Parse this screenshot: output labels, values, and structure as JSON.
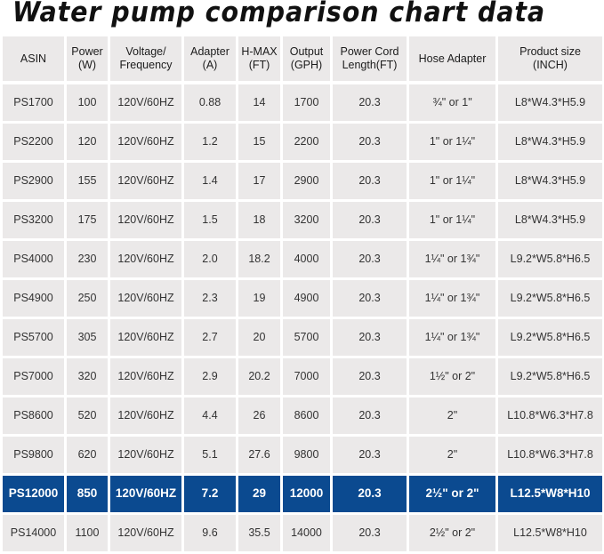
{
  "title": "Water pump comparison chart data",
  "highlight_color": "#0b4a90",
  "columns": [
    {
      "line1": "ASIN",
      "line2": ""
    },
    {
      "line1": "Power",
      "line2": "(W)"
    },
    {
      "line1": "Voltage/",
      "line2": "Frequency"
    },
    {
      "line1": "Adapter",
      "line2": "(A)"
    },
    {
      "line1": "H-MAX",
      "line2": "(FT)"
    },
    {
      "line1": "Output",
      "line2": "(GPH)"
    },
    {
      "line1": "Power Cord",
      "line2": "Length(FT)"
    },
    {
      "line1": "Hose Adapter",
      "line2": ""
    },
    {
      "line1": "Product size",
      "line2": "(INCH)"
    }
  ],
  "rows": [
    [
      "PS1700",
      "100",
      "120V/60HZ",
      "0.88",
      "14",
      "1700",
      "20.3",
      "¾\" or 1\"",
      "L8*W4.3*H5.9"
    ],
    [
      "PS2200",
      "120",
      "120V/60HZ",
      "1.2",
      "15",
      "2200",
      "20.3",
      "1\" or 1¼\"",
      "L8*W4.3*H5.9"
    ],
    [
      "PS2900",
      "155",
      "120V/60HZ",
      "1.4",
      "17",
      "2900",
      "20.3",
      "1\" or 1¼\"",
      "L8*W4.3*H5.9"
    ],
    [
      "PS3200",
      "175",
      "120V/60HZ",
      "1.5",
      "18",
      "3200",
      "20.3",
      "1\" or 1¼\"",
      "L8*W4.3*H5.9"
    ],
    [
      "PS4000",
      "230",
      "120V/60HZ",
      "2.0",
      "18.2",
      "4000",
      "20.3",
      "1¼\" or 1¾\"",
      "L9.2*W5.8*H6.5"
    ],
    [
      "PS4900",
      "250",
      "120V/60HZ",
      "2.3",
      "19",
      "4900",
      "20.3",
      "1¼\" or 1¾\"",
      "L9.2*W5.8*H6.5"
    ],
    [
      "PS5700",
      "305",
      "120V/60HZ",
      "2.7",
      "20",
      "5700",
      "20.3",
      "1¼\" or 1¾\"",
      "L9.2*W5.8*H6.5"
    ],
    [
      "PS7000",
      "320",
      "120V/60HZ",
      "2.9",
      "20.2",
      "7000",
      "20.3",
      "1½\" or 2\"",
      "L9.2*W5.8*H6.5"
    ],
    [
      "PS8600",
      "520",
      "120V/60HZ",
      "4.4",
      "26",
      "8600",
      "20.3",
      "2\"",
      "L10.8*W6.3*H7.8"
    ],
    [
      "PS9800",
      "620",
      "120V/60HZ",
      "5.1",
      "27.6",
      "9800",
      "20.3",
      "2\"",
      "L10.8*W6.3*H7.8"
    ],
    [
      "PS12000",
      "850",
      "120V/60HZ",
      "7.2",
      "29",
      "12000",
      "20.3",
      "2½\" or 2\"",
      "L12.5*W8*H10"
    ],
    [
      "PS14000",
      "1100",
      "120V/60HZ",
      "9.6",
      "35.5",
      "14000",
      "20.3",
      "2½\" or 2\"",
      "L12.5*W8*H10"
    ]
  ],
  "highlighted_row_index": 10
}
